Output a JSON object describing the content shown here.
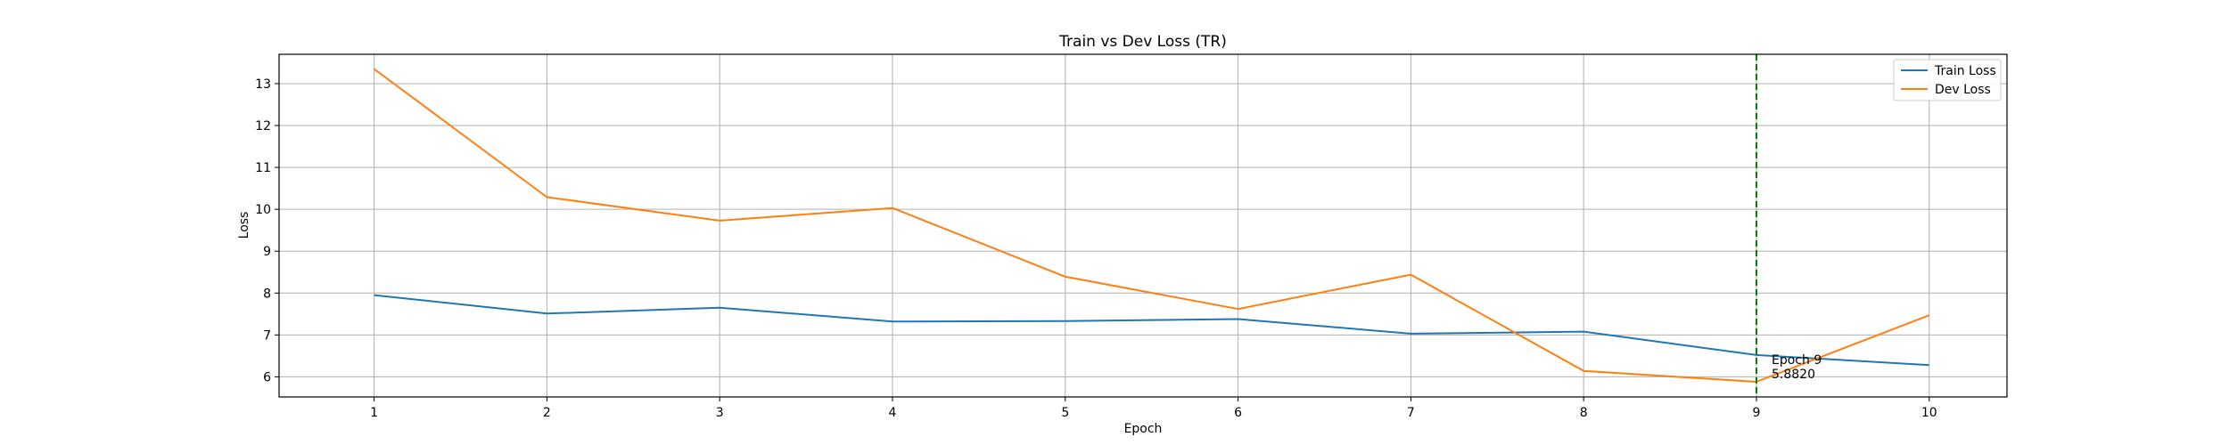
{
  "chart_data": {
    "type": "line",
    "title": "Train vs Dev Loss (TR)",
    "xlabel": "Epoch",
    "ylabel": "Loss",
    "x": [
      1,
      2,
      3,
      4,
      5,
      6,
      7,
      8,
      9,
      10
    ],
    "xticks": [
      "1",
      "2",
      "3",
      "4",
      "5",
      "6",
      "7",
      "8",
      "9",
      "10"
    ],
    "yticks": [
      6,
      7,
      8,
      9,
      10,
      11,
      12,
      13
    ],
    "xlim": [
      0.45,
      10.45
    ],
    "ylim": [
      5.52,
      13.7
    ],
    "grid": true,
    "legend_position": "top-right",
    "series": [
      {
        "name": "Train Loss",
        "color": "#1f77b4",
        "values": [
          7.95,
          7.51,
          7.65,
          7.32,
          7.33,
          7.38,
          7.03,
          7.08,
          6.52,
          6.28
        ]
      },
      {
        "name": "Dev Loss",
        "color": "#ff7f0e",
        "values": [
          13.35,
          10.29,
          9.73,
          10.03,
          8.39,
          7.62,
          8.44,
          6.14,
          5.882,
          7.47
        ]
      }
    ],
    "vline": {
      "x": 9,
      "color": "#008000"
    },
    "annotation": {
      "line1": "Epoch 9",
      "line2": "5.8820",
      "x": 9,
      "y": 5.882
    }
  }
}
